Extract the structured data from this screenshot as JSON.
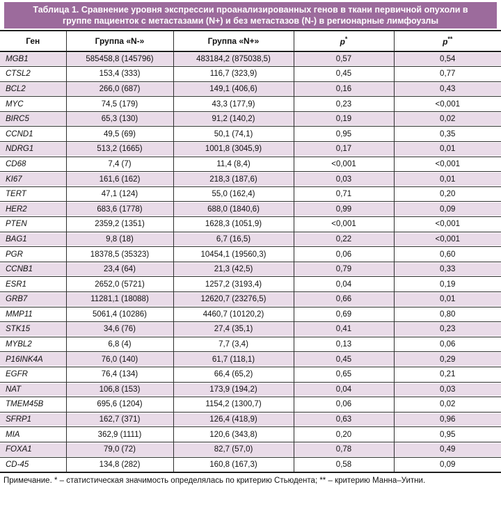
{
  "colors": {
    "accent": "#9c6b9c",
    "band_text": "#ffffff",
    "row_shade": "#e9dbe8",
    "grid": "#2e2e2e",
    "border_dark": "#1f1f1f",
    "text": "#111111",
    "bg": "#ffffff"
  },
  "table": {
    "title": "Таблица 1. Сравнение уровня экспрессии проанализированных генов в ткани первичной опухоли в группе пациенток с метастазами (N+) и без метастазов (N-) в регионарные лимфоузлы",
    "columns": [
      {
        "label": "Ген"
      },
      {
        "label": "Группа «N-»"
      },
      {
        "label": "Группа «N+»"
      },
      {
        "label": "p",
        "sup": "*"
      },
      {
        "label": "p",
        "sup": "**"
      }
    ],
    "rows": [
      [
        "MGB1",
        "585458,8 (145796)",
        "483184,2 (875038,5)",
        "0,57",
        "0,54"
      ],
      [
        "CTSL2",
        "153,4 (333)",
        "116,7 (323,9)",
        "0,45",
        "0,77"
      ],
      [
        "BCL2",
        "266,0 (687)",
        "149,1 (406,6)",
        "0,16",
        "0,43"
      ],
      [
        "MYC",
        "74,5 (179)",
        "43,3 (177,9)",
        "0,23",
        "<0,001"
      ],
      [
        "BIRC5",
        "65,3 (130)",
        "91,2 (140,2)",
        "0,19",
        "0,02"
      ],
      [
        "CCND1",
        "49,5 (69)",
        "50,1 (74,1)",
        "0,95",
        "0,35"
      ],
      [
        "NDRG1",
        "513,2 (1665)",
        "1001,8 (3045,9)",
        "0,17",
        "0,01"
      ],
      [
        "CD68",
        "7,4 (7)",
        "11,4 (8,4)",
        "<0,001",
        "<0,001"
      ],
      [
        "KI67",
        "161,6 (162)",
        "218,3 (187,6)",
        "0,03",
        "0,01"
      ],
      [
        "TERT",
        "47,1 (124)",
        "55,0 (162,4)",
        "0,71",
        "0,20"
      ],
      [
        "HER2",
        "683,6 (1778)",
        "688,0 (1840,6)",
        "0,99",
        "0,09"
      ],
      [
        "PTEN",
        "2359,2 (1351)",
        "1628,3 (1051,9)",
        "<0,001",
        "<0,001"
      ],
      [
        "BAG1",
        "9,8 (18)",
        "6,7 (16,5)",
        "0,22",
        "<0,001"
      ],
      [
        "PGR",
        "18378,5 (35323)",
        "10454,1 (19560,3)",
        "0,06",
        "0,60"
      ],
      [
        "CCNB1",
        "23,4 (64)",
        "21,3 (42,5)",
        "0,79",
        "0,33"
      ],
      [
        "ESR1",
        "2652,0 (5721)",
        "1257,2 (3193,4)",
        "0,04",
        "0,19"
      ],
      [
        "GRB7",
        "11281,1 (18088)",
        "12620,7 (23276,5)",
        "0,66",
        "0,01"
      ],
      [
        "MMP11",
        "5061,4 (10286)",
        "4460,7 (10120,2)",
        "0,69",
        "0,80"
      ],
      [
        "STK15",
        "34,6 (76)",
        "27,4 (35,1)",
        "0,41",
        "0,23"
      ],
      [
        "MYBL2",
        "6,8 (4)",
        "7,7 (3,4)",
        "0,13",
        "0,06"
      ],
      [
        "P16INK4A",
        "76,0 (140)",
        "61,7 (118,1)",
        "0,45",
        "0,29"
      ],
      [
        "EGFR",
        "76,4 (134)",
        "66,4 (65,2)",
        "0,65",
        "0,21"
      ],
      [
        "NAT",
        "106,8 (153)",
        "173,9 (194,2)",
        "0,04",
        "0,03"
      ],
      [
        "TMEM45B",
        "695,6 (1204)",
        "1154,2 (1300,7)",
        "0,06",
        "0,02"
      ],
      [
        "SFRP1",
        "162,7 (371)",
        "126,4 (418,9)",
        "0,63",
        "0,96"
      ],
      [
        "MIA",
        "362,9 (1111)",
        "120,6 (343,8)",
        "0,20",
        "0,95"
      ],
      [
        "FOXA1",
        "79,0 (72)",
        "82,7 (57,0)",
        "0,78",
        "0,49"
      ],
      [
        "CD-45",
        "134,8 (282)",
        "160,8 (167,3)",
        "0,58",
        "0,09"
      ]
    ],
    "note": "Примечание. * – статистическая значимость определялась по критерию Стьюдента; ** – критерию Манна–Уитни."
  }
}
